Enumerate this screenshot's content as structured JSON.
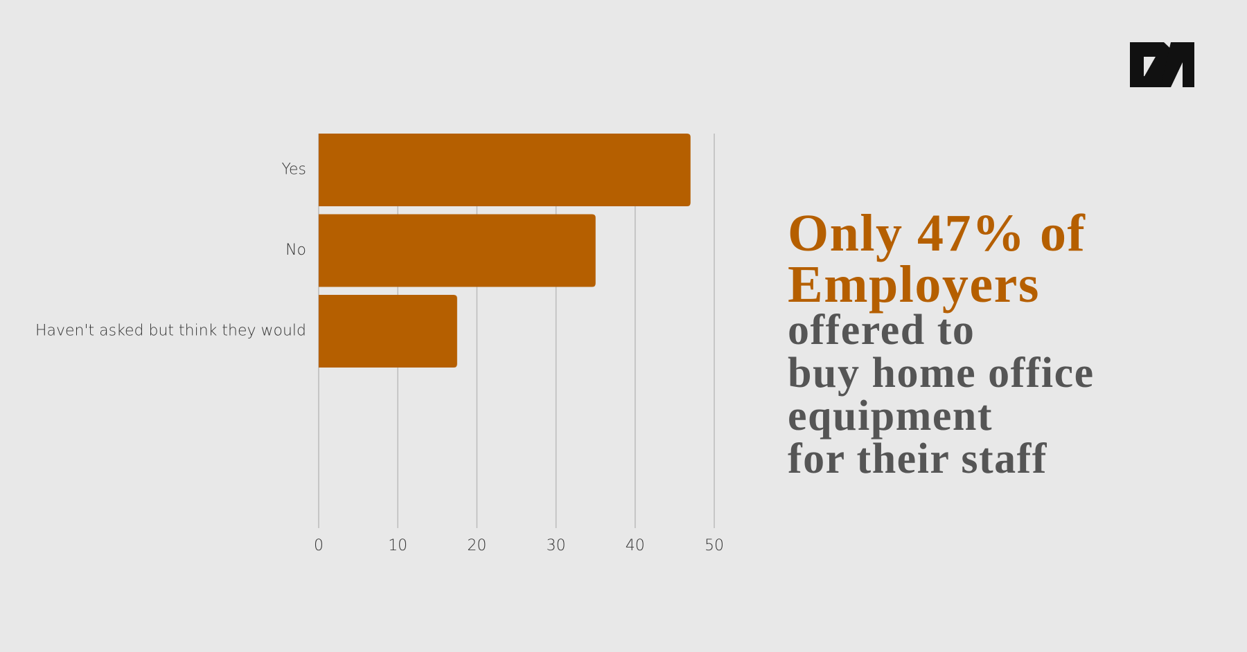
{
  "chart_data": {
    "type": "bar",
    "orientation": "horizontal",
    "categories": [
      "Yes",
      "No",
      "Haven't asked but think they would"
    ],
    "values": [
      47,
      35,
      17.5
    ],
    "color": "#b55f00",
    "xlim": [
      0,
      50
    ],
    "xticks": [
      0,
      10,
      20,
      30,
      40,
      50
    ],
    "grid": true,
    "annotation": {
      "highlight": [
        "Only 47% of",
        "Employers"
      ],
      "text": [
        "offered to",
        "buy home office",
        "equipment",
        "for their staff"
      ]
    }
  }
}
